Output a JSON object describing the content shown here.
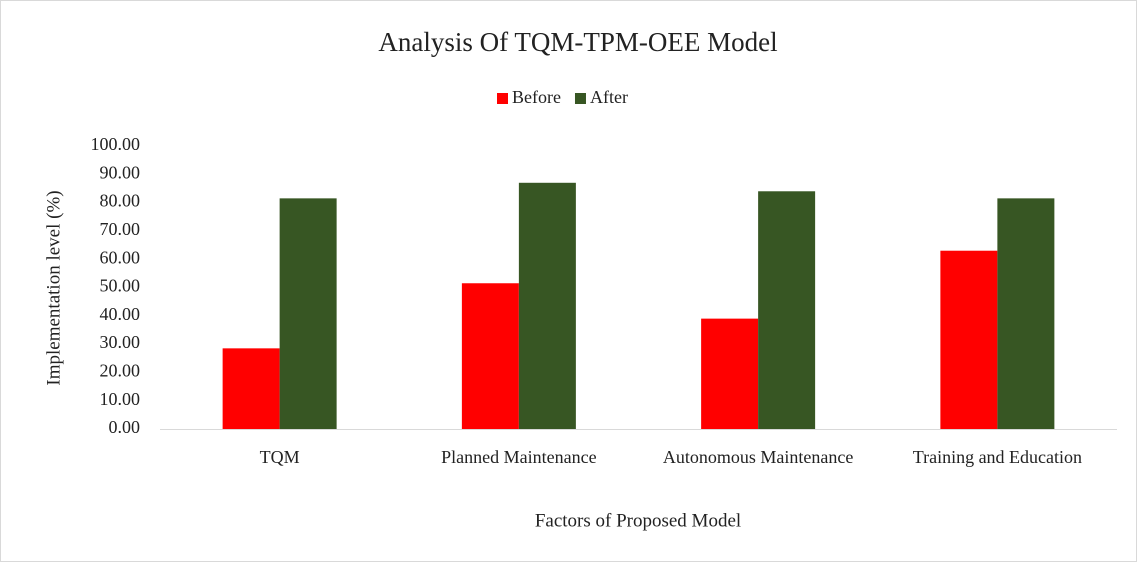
{
  "chart_data": {
    "type": "bar",
    "title": "Analysis  Of TQM-TPM-OEE  Model",
    "x_label": "Factors of Proposed Model",
    "y_label": "Implementation level (%)",
    "categories": [
      "TQM",
      "Planned Maintenance",
      "Autonomous Maintenance",
      "Training and Education"
    ],
    "series": [
      {
        "name": "Before",
        "color": "#ff0000",
        "values": [
          28.5,
          51.5,
          39,
          63
        ]
      },
      {
        "name": "After",
        "color": "#375623",
        "values": [
          81.5,
          87,
          84,
          81.5
        ]
      }
    ],
    "ylim": [
      0,
      100
    ],
    "yticks": [
      {
        "value": 0,
        "label": "0.00"
      },
      {
        "value": 10,
        "label": "10.00"
      },
      {
        "value": 20,
        "label": "20.00"
      },
      {
        "value": 30,
        "label": "30.00"
      },
      {
        "value": 40,
        "label": "40.00"
      },
      {
        "value": 50,
        "label": "50.00"
      },
      {
        "value": 60,
        "label": "60.00"
      },
      {
        "value": 70,
        "label": "70.00"
      },
      {
        "value": 80,
        "label": "80.00"
      },
      {
        "value": 90,
        "label": "90.00"
      },
      {
        "value": 100,
        "label": "100.00"
      }
    ],
    "grid": false,
    "legend": "top"
  }
}
